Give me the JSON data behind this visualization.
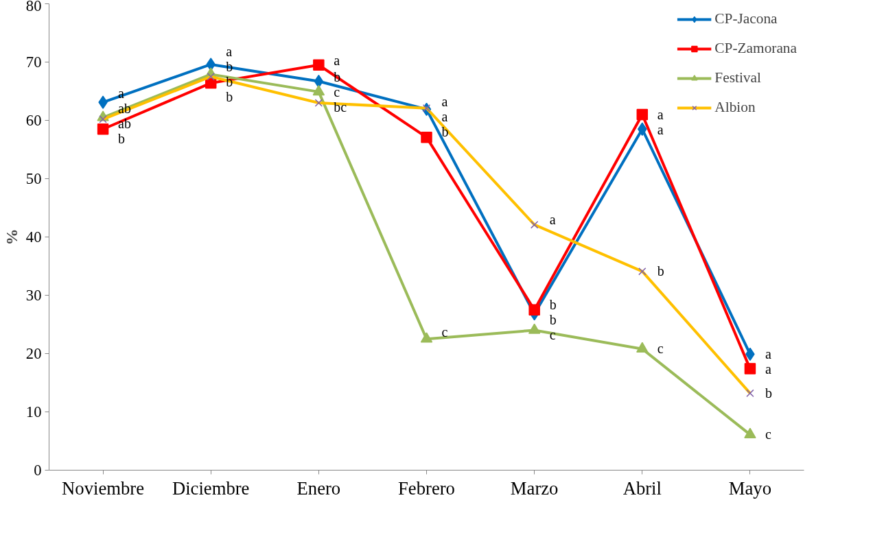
{
  "chart_data": {
    "type": "line",
    "ylabel": "%",
    "categories": [
      "Noviembre",
      "Diciembre",
      "Enero",
      "Febrero",
      "Marzo",
      "Abril",
      "Mayo"
    ],
    "ylim": [
      0,
      80
    ],
    "yticks": [
      0,
      10,
      20,
      30,
      40,
      50,
      60,
      70,
      80
    ],
    "grid": false,
    "legend": "top right",
    "line_style": "solid",
    "series": [
      {
        "name": "CP-Jacona",
        "color": "#0070c0",
        "marker": "diamond",
        "values": [
          63.1,
          69.6,
          66.7,
          61.9,
          26.8,
          58.5,
          19.9
        ],
        "value_labels": [
          "a",
          "a",
          "b",
          "a",
          "b",
          "a",
          "a"
        ]
      },
      {
        "name": "CP-Zamorana",
        "color": "#ff0000",
        "marker": "square",
        "values": [
          58.5,
          66.4,
          69.5,
          57.1,
          27.5,
          61.0,
          17.4
        ],
        "value_labels": [
          "b",
          "b",
          "a",
          "b",
          "b",
          "a",
          "a"
        ]
      },
      {
        "name": "Festival",
        "color": "#9bbb59",
        "marker": "triangle",
        "values": [
          60.5,
          67.9,
          64.9,
          22.5,
          24.0,
          20.8,
          6.1
        ],
        "value_labels": [
          "ab",
          "b",
          "c",
          "c",
          "c",
          "c",
          "c"
        ]
      },
      {
        "name": "Albion",
        "color": "#ffc000",
        "marker": "cross",
        "values": [
          60.2,
          67.5,
          63.0,
          62.1,
          42.1,
          34.1,
          13.2
        ],
        "value_labels": [
          "ab",
          "b",
          "bc",
          "a",
          "a",
          "b",
          "b"
        ]
      }
    ]
  }
}
